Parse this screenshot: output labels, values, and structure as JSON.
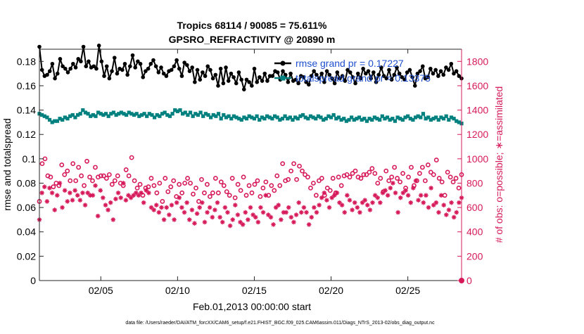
{
  "chart_data": {
    "type": "line",
    "title_line1": "Tropics 68114 / 90085 = 75.611%",
    "title_line2": "GPSRO_REFRACTIVITY @ 20890 m",
    "xlabel": "Feb.01,2013 00:00:00 start",
    "ylabel_left": "rmse and totalspread",
    "ylabel_right": "# of obs: o=possible; ∗=assimilated",
    "footer": "data file: /Users/raeder/DAI/ATM_forcXX/CAM6_setup/f.e21.FHIST_BGC.f09_025.CAM6assim.011/Diags_NTrS_2013-02/obs_diag_output.nc",
    "xlim": [
      1,
      28.5
    ],
    "ylim_left": [
      0,
      0.19
    ],
    "ylim_right": [
      0,
      1900
    ],
    "x_ticks": [
      {
        "value": 5,
        "label": "02/05"
      },
      {
        "value": 10,
        "label": "02/10"
      },
      {
        "value": 15,
        "label": "02/15"
      },
      {
        "value": 20,
        "label": "02/20"
      },
      {
        "value": 25,
        "label": "02/25"
      }
    ],
    "y_ticks_left": [
      {
        "value": 0,
        "label": "0"
      },
      {
        "value": 0.02,
        "label": "0.02"
      },
      {
        "value": 0.04,
        "label": "0.04"
      },
      {
        "value": 0.06,
        "label": "0.06"
      },
      {
        "value": 0.08,
        "label": "0.08"
      },
      {
        "value": 0.1,
        "label": "0.1"
      },
      {
        "value": 0.12,
        "label": "0.12"
      },
      {
        "value": 0.14,
        "label": "0.14"
      },
      {
        "value": 0.16,
        "label": "0.16"
      },
      {
        "value": 0.18,
        "label": "0.18"
      }
    ],
    "y_ticks_right": [
      {
        "value": 0,
        "label": "0"
      },
      {
        "value": 200,
        "label": "200"
      },
      {
        "value": 400,
        "label": "400"
      },
      {
        "value": 600,
        "label": "600"
      },
      {
        "value": 800,
        "label": "800"
      },
      {
        "value": 1000,
        "label": "1000"
      },
      {
        "value": 1200,
        "label": "1200"
      },
      {
        "value": 1400,
        "label": "1400"
      },
      {
        "value": 1600,
        "label": "1600"
      },
      {
        "value": 1800,
        "label": "1800"
      }
    ],
    "legend_position": "top-right",
    "colors": {
      "rmse": "#000000",
      "spread": "#00807f",
      "obs": "#d6195a",
      "axis": "#262626",
      "legend_text": "#2050d0"
    },
    "series": [
      {
        "name": "rmse grand pr = 0.17227",
        "axis": "left",
        "marker": "filled-circle",
        "values": [
          0.192,
          0.173,
          0.168,
          0.169,
          0.172,
          0.178,
          0.166,
          0.17,
          0.182,
          0.176,
          0.174,
          0.171,
          0.174,
          0.178,
          0.175,
          0.182,
          0.18,
          0.192,
          0.176,
          0.18,
          0.175,
          0.176,
          0.174,
          0.193,
          0.18,
          0.168,
          0.176,
          0.166,
          0.172,
          0.183,
          0.17,
          0.174,
          0.173,
          0.178,
          0.169,
          0.176,
          0.185,
          0.175,
          0.18,
          0.178,
          0.167,
          0.172,
          0.174,
          0.178,
          0.181,
          0.176,
          0.171,
          0.175,
          0.17,
          0.168,
          0.172,
          0.173,
          0.176,
          0.181,
          0.174,
          0.168,
          0.179,
          0.177,
          0.172,
          0.175,
          0.163,
          0.173,
          0.165,
          0.171,
          0.168,
          0.176,
          0.173,
          0.166,
          0.169,
          0.16,
          0.174,
          0.162,
          0.175,
          0.164,
          0.17,
          0.167,
          0.162,
          0.171,
          0.165,
          0.157,
          0.165,
          0.163,
          0.16,
          0.174,
          0.163,
          0.167,
          0.164,
          0.17,
          0.164,
          0.168,
          0.168,
          0.172,
          0.171,
          0.165,
          0.172,
          0.169,
          0.163,
          0.17,
          0.164,
          0.165,
          0.162,
          0.168,
          0.167,
          0.163,
          0.161,
          0.168,
          0.172,
          0.169,
          0.166,
          0.17,
          0.163,
          0.172,
          0.169,
          0.166,
          0.162,
          0.171,
          0.166,
          0.168,
          0.164,
          0.173,
          0.171,
          0.167,
          0.162,
          0.17,
          0.166,
          0.174,
          0.17,
          0.172,
          0.166,
          0.171,
          0.163,
          0.169,
          0.175,
          0.168,
          0.166,
          0.173,
          0.165,
          0.169,
          0.175,
          0.17,
          0.167,
          0.165,
          0.171,
          0.173,
          0.167,
          0.16,
          0.17,
          0.172,
          0.176,
          0.166,
          0.167,
          0.174,
          0.17,
          0.173,
          0.168,
          0.172,
          0.169,
          0.175,
          0.173,
          0.178,
          0.17,
          0.172,
          0.168,
          0.166
        ]
      },
      {
        "name": "totalspread grand pr = 0.13375",
        "axis": "left",
        "marker": "filled-square",
        "values": [
          0.137,
          0.136,
          0.135,
          0.134,
          0.132,
          0.13,
          0.131,
          0.131,
          0.133,
          0.132,
          0.134,
          0.133,
          0.135,
          0.136,
          0.134,
          0.136,
          0.137,
          0.14,
          0.138,
          0.137,
          0.135,
          0.136,
          0.135,
          0.138,
          0.137,
          0.136,
          0.137,
          0.135,
          0.137,
          0.138,
          0.136,
          0.137,
          0.138,
          0.137,
          0.136,
          0.138,
          0.137,
          0.136,
          0.137,
          0.135,
          0.136,
          0.137,
          0.135,
          0.137,
          0.136,
          0.134,
          0.136,
          0.135,
          0.137,
          0.138,
          0.136,
          0.135,
          0.137,
          0.14,
          0.139,
          0.14,
          0.137,
          0.138,
          0.136,
          0.138,
          0.135,
          0.137,
          0.136,
          0.138,
          0.135,
          0.137,
          0.136,
          0.134,
          0.136,
          0.135,
          0.137,
          0.133,
          0.136,
          0.134,
          0.135,
          0.133,
          0.135,
          0.134,
          0.133,
          0.132,
          0.134,
          0.133,
          0.135,
          0.134,
          0.133,
          0.135,
          0.132,
          0.134,
          0.133,
          0.135,
          0.134,
          0.133,
          0.135,
          0.134,
          0.132,
          0.133,
          0.135,
          0.133,
          0.134,
          0.132,
          0.134,
          0.133,
          0.135,
          0.136,
          0.134,
          0.133,
          0.135,
          0.134,
          0.133,
          0.135,
          0.134,
          0.132,
          0.133,
          0.135,
          0.134,
          0.136,
          0.133,
          0.134,
          0.132,
          0.133,
          0.131,
          0.132,
          0.134,
          0.132,
          0.133,
          0.134,
          0.132,
          0.133,
          0.131,
          0.133,
          0.132,
          0.134,
          0.133,
          0.132,
          0.135,
          0.133,
          0.134,
          0.132,
          0.133,
          0.131,
          0.134,
          0.133,
          0.132,
          0.134,
          0.135,
          0.133,
          0.132,
          0.134,
          0.135,
          0.134,
          0.137,
          0.133,
          0.134,
          0.132,
          0.133,
          0.134,
          0.132,
          0.134,
          0.133,
          0.135,
          0.132,
          0.134,
          0.133,
          0.131,
          0.13,
          0.129
        ]
      },
      {
        "name": "possible obs",
        "axis": "right",
        "marker": "open-circle",
        "values": [
          650,
          960,
          1000,
          860,
          850,
          770,
          800,
          780,
          950,
          870,
          900,
          820,
          960,
          820,
          930,
          860,
          780,
          980,
          850,
          820,
          930,
          850,
          860,
          860,
          840,
          870,
          790,
          820,
          860,
          800,
          780,
          910,
          860,
          1010,
          820,
          760,
          790,
          700,
          760,
          770,
          840,
          780,
          720,
          800,
          650,
          840,
          730,
          770,
          820,
          690,
          790,
          720,
          800,
          840,
          800,
          710,
          760,
          650,
          830,
          720,
          790,
          690,
          720,
          840,
          720,
          810,
          780,
          730,
          700,
          840,
          680,
          790,
          740,
          850,
          700,
          780,
          720,
          790,
          820,
          690,
          760,
          810,
          700,
          780,
          740,
          860,
          780,
          960,
          820,
          830,
          900,
          960,
          830,
          940,
          900,
          870,
          850,
          760,
          800,
          700,
          820,
          840,
          700,
          760,
          740,
          840,
          720,
          850,
          780,
          860,
          870,
          850,
          880,
          900,
          850,
          840,
          870,
          870,
          890,
          920,
          880,
          800,
          840,
          730,
          900,
          820,
          850,
          930,
          840,
          810,
          880,
          760,
          850,
          930,
          780,
          820,
          880,
          930,
          820,
          950,
          890,
          870,
          990,
          840,
          810,
          700,
          890,
          850,
          810,
          840,
          760,
          870
        ]
      },
      {
        "name": "assimilated obs",
        "axis": "right",
        "marker": "asterisk",
        "values": [
          500,
          720,
          770,
          650,
          760,
          720,
          580,
          700,
          800,
          600,
          740,
          650,
          720,
          660,
          740,
          700,
          660,
          720,
          620,
          720,
          700,
          700,
          780,
          530,
          740,
          680,
          620,
          580,
          640,
          500,
          670,
          720,
          680,
          800,
          660,
          700,
          680,
          700,
          720,
          700,
          720,
          640,
          740,
          720,
          600,
          580,
          620,
          560,
          600,
          500,
          600,
          540,
          620,
          500,
          640,
          680,
          600,
          560,
          640,
          500,
          580,
          470,
          550,
          600,
          640,
          480,
          560,
          600,
          520,
          580,
          640,
          520,
          480,
          600,
          560,
          450,
          500,
          620,
          540,
          480,
          460,
          560,
          500,
          600,
          540,
          520,
          480,
          600,
          560,
          700,
          540,
          520,
          460,
          600,
          620,
          500,
          560,
          560,
          600,
          520,
          480,
          540,
          640,
          560,
          600,
          560,
          460,
          520,
          600,
          560,
          620,
          680,
          720,
          660,
          600,
          680,
          700,
          720,
          640,
          620,
          560,
          700,
          660,
          580,
          640,
          600,
          560,
          640,
          660,
          620,
          580,
          640,
          700,
          680,
          640,
          720,
          740,
          700,
          760,
          800,
          720,
          560,
          680,
          720,
          740,
          700,
          640,
          760,
          820,
          660,
          700,
          640,
          700,
          600,
          760,
          620,
          640,
          560,
          700,
          620,
          540,
          580,
          640,
          520,
          560,
          640,
          680
        ]
      }
    ],
    "corner_marker": {
      "x": 28.5,
      "y_right": 0
    }
  }
}
